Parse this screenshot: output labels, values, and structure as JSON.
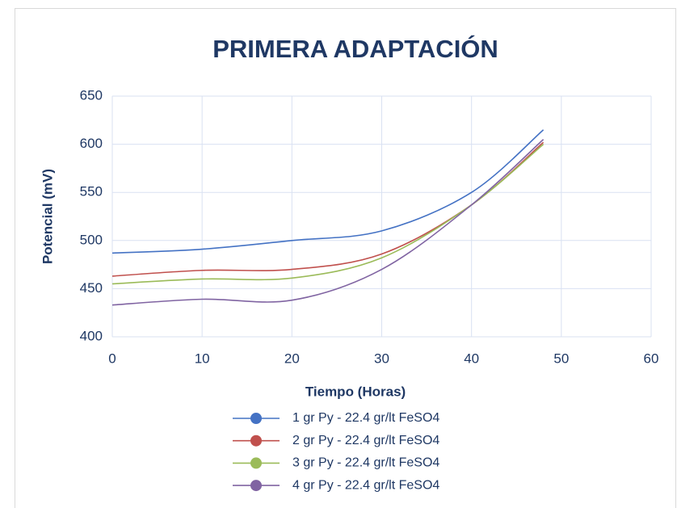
{
  "chart_data": {
    "type": "line",
    "title": "PRIMERA ADAPTACIÓN",
    "x_label": "Tiempo (Horas)",
    "y_label": "Potencial (mV)",
    "x": [
      0,
      10,
      20,
      30,
      40,
      48
    ],
    "series": [
      {
        "name": "1 gr Py - 22.4 gr/lt FeSO4",
        "color": "#4472c4",
        "values": [
          487,
          491,
          500,
          510,
          550,
          615
        ]
      },
      {
        "name": "2 gr Py - 22.4 gr/lt FeSO4",
        "color": "#c0504d",
        "values": [
          463,
          469,
          470,
          486,
          537,
          602
        ]
      },
      {
        "name": "3 gr Py - 22.4 gr/lt FeSO4",
        "color": "#9bbb59",
        "values": [
          455,
          460,
          461,
          482,
          537,
          600
        ]
      },
      {
        "name": "4 gr Py - 22.4 gr/lt FeSO4",
        "color": "#8064a2",
        "values": [
          433,
          439,
          438,
          470,
          537,
          605
        ]
      }
    ],
    "xlim": [
      0,
      60
    ],
    "xticks": [
      0,
      10,
      20,
      30,
      40,
      50,
      60
    ],
    "ylim": [
      400,
      650
    ],
    "yticks": [
      400,
      450,
      500,
      550,
      600,
      650
    ],
    "grid": true,
    "smooth": true
  }
}
